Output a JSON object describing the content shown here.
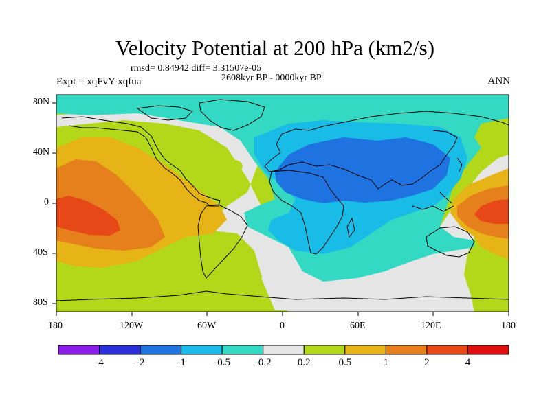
{
  "title": "Velocity Potential at 200 hPa (km2/s)",
  "stats": "rmsd= 0.84942  diff= 3.31507e-05",
  "period": "2608kyr BP - 0000kyr BP",
  "experiment": "Expt = xqFvY-xqfua",
  "season": "ANN",
  "lat_labels": [
    "80N",
    "40N",
    "0",
    "40S",
    "80S"
  ],
  "lon_labels": [
    "180",
    "120W",
    "60W",
    "0",
    "60E",
    "120E",
    "180"
  ],
  "colorbar": {
    "labels": [
      "-4",
      "-2",
      "-1",
      "-0.5",
      "-0.2",
      "0.2",
      "0.5",
      "1",
      "2",
      "4"
    ],
    "colors": [
      "#8a1de8",
      "#2b2fd8",
      "#1f73e0",
      "#19bce6",
      "#33d9c2",
      "#e6e6e6",
      "#b3d81a",
      "#e6b417",
      "#e6801c",
      "#e64818",
      "#e00f0f"
    ]
  },
  "colors": {
    "background_level": "#b3d81a",
    "negative_mid": "#33d9c2",
    "negative_strong": "#19bce6",
    "negative_strongest": "#1f73e0",
    "near_zero": "#e6e6e6",
    "positive_mid": "#e6b417",
    "positive_strong": "#e6801c",
    "positive_strongest": "#e64818"
  }
}
